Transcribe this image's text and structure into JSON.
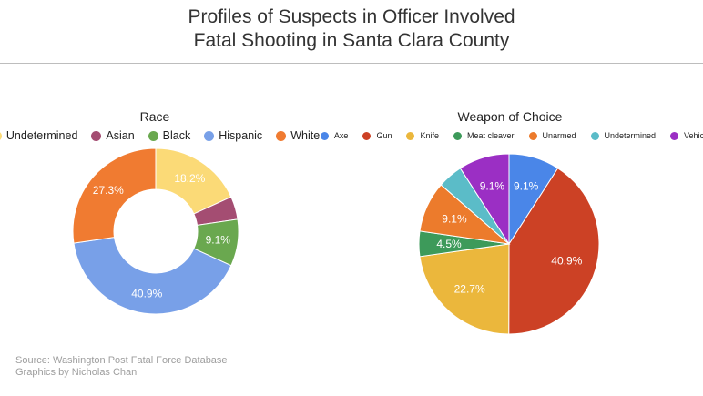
{
  "page": {
    "title_line1": "Profiles of Suspects in Officer Involved",
    "title_line2": "Fatal Shooting in Santa Clara County"
  },
  "source": {
    "line1": "Source: Washington Post Fatal Force Database",
    "line2": "Graphics by Nicholas Chan"
  },
  "chart_data": [
    {
      "type": "pie",
      "variant": "donut",
      "title": "Race",
      "legend_position": "top",
      "categories": [
        "Undetermined",
        "Asian",
        "Black",
        "Hispanic",
        "White"
      ],
      "values": [
        18.2,
        4.5,
        9.1,
        40.9,
        27.3
      ],
      "labels": [
        "18.2%",
        "",
        "9.1%",
        "40.9%",
        "27.3%"
      ],
      "colors": [
        "#fbda77",
        "#a44d72",
        "#6aa84f",
        "#78a0e8",
        "#f07b31"
      ]
    },
    {
      "type": "pie",
      "title": "Weapon of Choice",
      "legend_position": "top",
      "categories": [
        "Axe",
        "Gun",
        "Knife",
        "Meat cleaver",
        "Unarmed",
        "Undetermined",
        "Vehicle"
      ],
      "values": [
        9.1,
        40.9,
        22.7,
        4.5,
        9.1,
        4.5,
        9.1
      ],
      "labels": [
        "9.1%",
        "40.9%",
        "22.7%",
        "4.5%",
        "9.1%",
        "",
        "9.1%"
      ],
      "colors": [
        "#4a86e8",
        "#cc4125",
        "#ebb73c",
        "#3d9a5a",
        "#ec7b2c",
        "#5bbcc8",
        "#9b2fc4"
      ]
    }
  ]
}
